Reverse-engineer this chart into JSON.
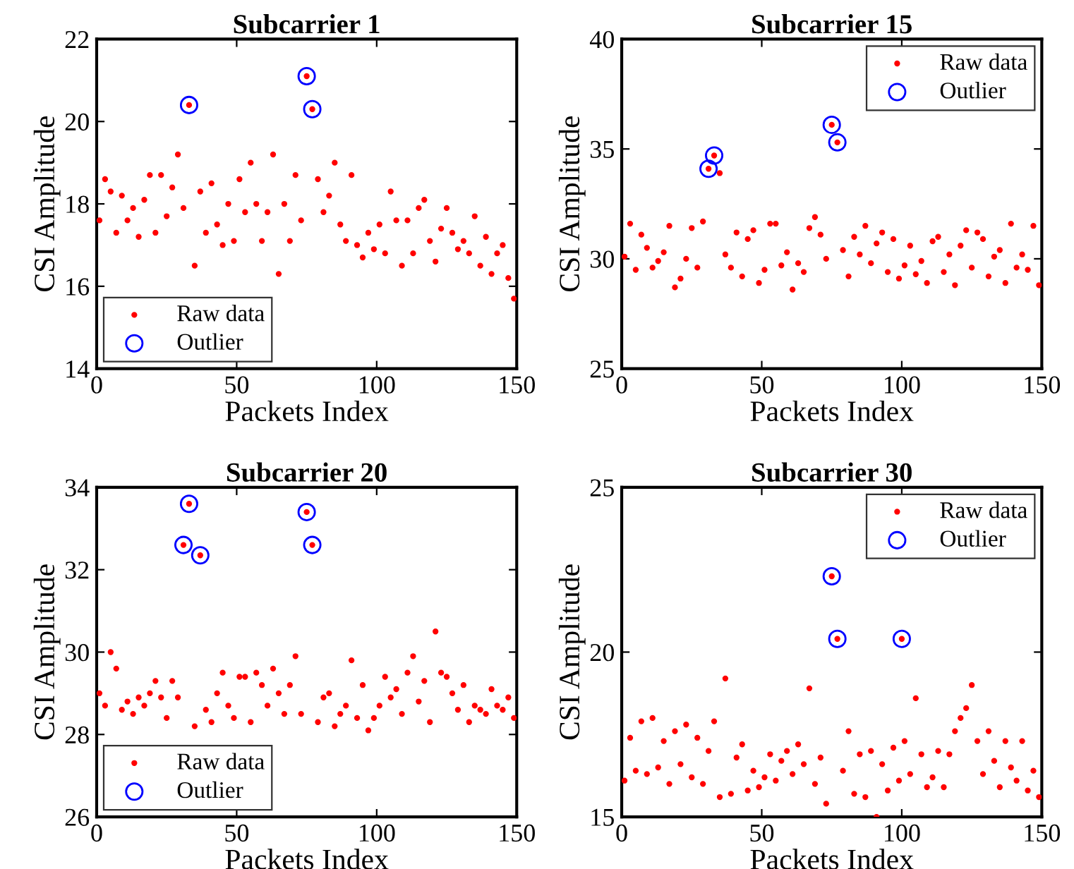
{
  "chart_data": [
    {
      "type": "scatter",
      "title": "Subcarrier 1",
      "xlabel": "Packets Index",
      "ylabel": "CSI Amplitude",
      "xlim": [
        0,
        150
      ],
      "xticks": [
        0,
        50,
        100,
        150
      ],
      "ylim": [
        14,
        22
      ],
      "yticks": [
        14,
        16,
        18,
        20,
        22
      ],
      "grid": false,
      "legend": "bottom left",
      "series": [
        {
          "name": "Raw data",
          "color": "#ff0000",
          "marker": "circle",
          "x": [
            1,
            3,
            5,
            7,
            9,
            11,
            13,
            15,
            17,
            19,
            21,
            23,
            25,
            27,
            29,
            31,
            33,
            35,
            37,
            39,
            41,
            43,
            45,
            47,
            49,
            51,
            53,
            55,
            57,
            59,
            61,
            63,
            65,
            67,
            69,
            71,
            73,
            75,
            77,
            79,
            81,
            83,
            85,
            87,
            89,
            91,
            93,
            95,
            97,
            99,
            101,
            103,
            105,
            107,
            109,
            111,
            113,
            115,
            117,
            119,
            121,
            123,
            125,
            127,
            129,
            131,
            133,
            135,
            137,
            139,
            141,
            143,
            145,
            147,
            149
          ],
          "values": [
            17.6,
            18.6,
            18.3,
            17.3,
            18.2,
            17.6,
            17.9,
            17.2,
            18.1,
            18.7,
            17.3,
            18.7,
            17.7,
            18.4,
            19.2,
            17.9,
            20.4,
            16.5,
            18.3,
            17.3,
            18.5,
            17.5,
            17.0,
            18.0,
            17.1,
            18.6,
            17.8,
            19.0,
            18.0,
            17.1,
            17.8,
            19.2,
            16.3,
            18.0,
            17.1,
            18.7,
            17.6,
            21.1,
            20.3,
            18.6,
            17.8,
            18.2,
            19.0,
            17.5,
            17.1,
            18.7,
            17.0,
            16.7,
            17.3,
            16.9,
            17.5,
            16.8,
            18.3,
            17.6,
            16.5,
            17.6,
            16.8,
            17.9,
            18.1,
            17.1,
            16.6,
            17.4,
            17.9,
            17.3,
            16.9,
            17.1,
            16.8,
            17.7,
            16.5,
            17.2,
            16.3,
            16.8,
            17.0,
            16.2,
            15.7
          ]
        },
        {
          "name": "Outlier",
          "color": "#0000ff",
          "marker": "circle",
          "x": [
            33,
            75,
            77
          ],
          "values": [
            20.4,
            21.1,
            20.3
          ]
        }
      ]
    },
    {
      "type": "scatter",
      "title": "Subcarrier 15",
      "xlabel": "Packets Index",
      "ylabel": "CSI Amplitude",
      "xlim": [
        0,
        150
      ],
      "xticks": [
        0,
        50,
        100,
        150
      ],
      "ylim": [
        25,
        40
      ],
      "yticks": [
        25,
        30,
        35,
        40
      ],
      "grid": false,
      "legend": "top right",
      "series": [
        {
          "name": "Raw data",
          "color": "#ff0000",
          "marker": "circle",
          "x": [
            1,
            3,
            5,
            7,
            9,
            11,
            13,
            15,
            17,
            19,
            21,
            23,
            25,
            27,
            29,
            31,
            33,
            35,
            37,
            39,
            41,
            43,
            45,
            47,
            49,
            51,
            53,
            55,
            57,
            59,
            61,
            63,
            65,
            67,
            69,
            71,
            73,
            75,
            77,
            79,
            81,
            83,
            85,
            87,
            89,
            91,
            93,
            95,
            97,
            99,
            101,
            103,
            105,
            107,
            109,
            111,
            113,
            115,
            117,
            119,
            121,
            123,
            125,
            127,
            129,
            131,
            133,
            135,
            137,
            139,
            141,
            143,
            145,
            147,
            149
          ],
          "values": [
            30.1,
            31.6,
            29.5,
            31.1,
            30.5,
            29.6,
            29.9,
            30.3,
            31.5,
            28.7,
            29.1,
            30.0,
            31.4,
            29.6,
            31.7,
            34.1,
            34.7,
            33.9,
            30.2,
            29.6,
            31.2,
            29.2,
            30.9,
            31.3,
            28.9,
            29.5,
            31.6,
            31.6,
            29.7,
            30.3,
            28.6,
            29.8,
            29.4,
            31.4,
            31.9,
            31.1,
            30.0,
            36.1,
            35.3,
            30.4,
            29.2,
            31.0,
            30.2,
            31.5,
            29.8,
            30.7,
            31.2,
            29.4,
            30.9,
            29.1,
            29.7,
            30.6,
            29.3,
            29.9,
            28.9,
            30.8,
            31.0,
            29.4,
            30.2,
            28.8,
            30.6,
            31.3,
            29.6,
            31.2,
            30.9,
            29.2,
            30.1,
            30.4,
            28.9,
            31.6,
            29.6,
            30.2,
            29.5,
            31.5,
            28.8
          ]
        },
        {
          "name": "Outlier",
          "color": "#0000ff",
          "marker": "circle",
          "x": [
            31,
            33,
            75,
            77
          ],
          "values": [
            34.1,
            34.7,
            36.1,
            35.3
          ]
        }
      ]
    },
    {
      "type": "scatter",
      "title": "Subcarrier 20",
      "xlabel": "Packets Index",
      "ylabel": "CSI Amplitude",
      "xlim": [
        0,
        150
      ],
      "xticks": [
        0,
        50,
        100,
        150
      ],
      "ylim": [
        26,
        34
      ],
      "yticks": [
        26,
        28,
        30,
        32,
        34
      ],
      "grid": false,
      "legend": "bottom left",
      "series": [
        {
          "name": "Raw data",
          "color": "#ff0000",
          "marker": "circle",
          "x": [
            1,
            3,
            5,
            7,
            9,
            11,
            13,
            15,
            17,
            19,
            21,
            23,
            25,
            27,
            29,
            31,
            33,
            35,
            37,
            39,
            41,
            43,
            45,
            47,
            49,
            51,
            53,
            55,
            57,
            59,
            61,
            63,
            65,
            67,
            69,
            71,
            73,
            75,
            77,
            79,
            81,
            83,
            85,
            87,
            89,
            91,
            93,
            95,
            97,
            99,
            101,
            103,
            105,
            107,
            109,
            111,
            113,
            115,
            117,
            119,
            121,
            123,
            125,
            127,
            129,
            131,
            133,
            135,
            137,
            139,
            141,
            143,
            145,
            147,
            149
          ],
          "values": [
            29.0,
            28.7,
            30.0,
            29.6,
            28.6,
            28.8,
            28.5,
            28.9,
            28.7,
            29.0,
            29.3,
            28.9,
            28.4,
            29.3,
            28.9,
            32.6,
            33.6,
            28.2,
            32.35,
            28.6,
            28.3,
            29.0,
            29.5,
            28.7,
            28.4,
            29.4,
            29.4,
            28.3,
            29.5,
            29.2,
            28.7,
            29.6,
            29.0,
            28.5,
            29.2,
            29.9,
            28.5,
            33.4,
            32.6,
            28.3,
            28.9,
            29.0,
            28.2,
            28.5,
            28.7,
            29.8,
            28.4,
            29.2,
            28.1,
            28.4,
            28.7,
            29.4,
            28.9,
            29.1,
            28.5,
            29.5,
            29.9,
            28.8,
            29.3,
            28.3,
            30.5,
            29.5,
            29.4,
            29.0,
            28.6,
            29.2,
            28.3,
            28.7,
            28.6,
            28.5,
            29.1,
            28.7,
            28.6,
            28.9,
            28.4
          ]
        },
        {
          "name": "Outlier",
          "color": "#0000ff",
          "marker": "circle",
          "x": [
            31,
            33,
            37,
            75,
            77
          ],
          "values": [
            32.6,
            33.6,
            32.35,
            33.4,
            32.6
          ]
        }
      ]
    },
    {
      "type": "scatter",
      "title": "Subcarrier 30",
      "xlabel": "Packets Index",
      "ylabel": "CSI Amplitude",
      "xlim": [
        0,
        150
      ],
      "xticks": [
        0,
        50,
        100,
        150
      ],
      "ylim": [
        15,
        25
      ],
      "yticks": [
        15,
        20,
        25
      ],
      "grid": false,
      "legend": "top right",
      "series": [
        {
          "name": "Raw data",
          "color": "#ff0000",
          "marker": "circle",
          "x": [
            1,
            3,
            5,
            7,
            9,
            11,
            13,
            15,
            17,
            19,
            21,
            23,
            25,
            27,
            29,
            31,
            33,
            35,
            37,
            39,
            41,
            43,
            45,
            47,
            49,
            51,
            53,
            55,
            57,
            59,
            61,
            63,
            65,
            67,
            69,
            71,
            73,
            75,
            77,
            79,
            81,
            83,
            85,
            87,
            89,
            91,
            93,
            95,
            97,
            99,
            100,
            101,
            103,
            105,
            107,
            109,
            111,
            113,
            115,
            117,
            119,
            121,
            123,
            125,
            127,
            129,
            131,
            133,
            135,
            137,
            139,
            141,
            143,
            145,
            147,
            149
          ],
          "values": [
            16.1,
            17.4,
            16.4,
            17.9,
            16.3,
            18.0,
            16.5,
            17.3,
            16.0,
            17.6,
            16.6,
            17.8,
            16.2,
            17.4,
            16.0,
            17.0,
            17.9,
            15.6,
            19.2,
            15.7,
            16.8,
            17.2,
            15.8,
            16.4,
            15.9,
            16.2,
            16.9,
            16.1,
            16.7,
            17.0,
            16.3,
            17.2,
            16.6,
            18.9,
            16.0,
            16.8,
            15.4,
            22.3,
            20.4,
            16.4,
            17.6,
            15.7,
            16.9,
            15.6,
            17.0,
            15.0,
            16.6,
            15.8,
            17.1,
            16.1,
            20.4,
            17.3,
            16.3,
            18.6,
            16.9,
            15.9,
            16.2,
            17.0,
            15.9,
            16.9,
            17.6,
            18.0,
            18.3,
            19.0,
            17.3,
            16.3,
            17.6,
            16.7,
            15.9,
            17.3,
            16.5,
            16.1,
            17.3,
            15.8,
            16.4,
            15.6
          ]
        },
        {
          "name": "Outlier",
          "color": "#0000ff",
          "marker": "circle",
          "x": [
            75,
            77,
            100
          ],
          "values": [
            22.3,
            20.4,
            20.4
          ]
        }
      ]
    }
  ]
}
